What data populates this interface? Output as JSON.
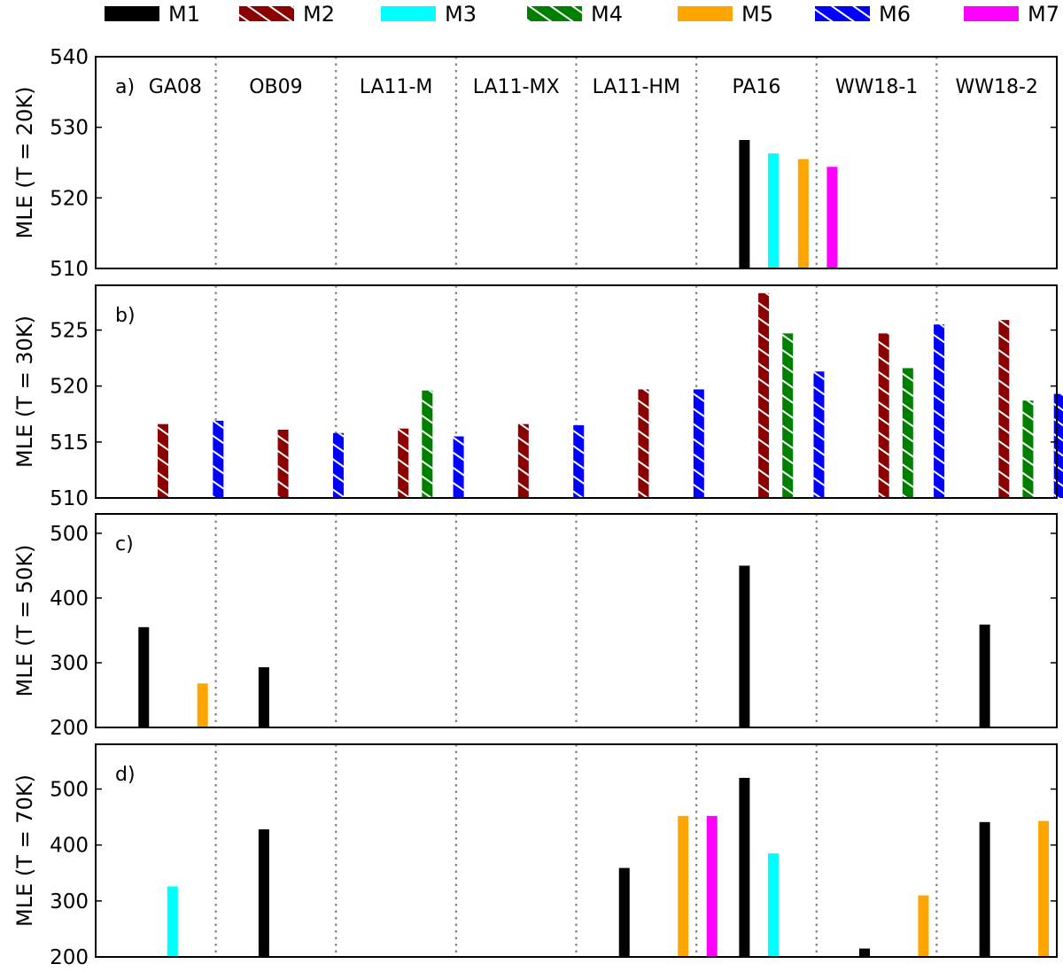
{
  "legend": [
    {
      "name": "M1",
      "color": "#000000",
      "hatch": false
    },
    {
      "name": "M2",
      "color": "#8b0000",
      "hatch": true
    },
    {
      "name": "M3",
      "color": "#00ffff",
      "hatch": false
    },
    {
      "name": "M4",
      "color": "#008000",
      "hatch": true
    },
    {
      "name": "M5",
      "color": "#ffa500",
      "hatch": false
    },
    {
      "name": "M6",
      "color": "#0000ff",
      "hatch": true
    },
    {
      "name": "M7",
      "color": "#ff00ff",
      "hatch": false
    }
  ],
  "chart_data": [
    {
      "type": "bar",
      "panel_label": "a)",
      "ylabel": "MLE (T = 20K)",
      "ylim": [
        510,
        540
      ],
      "yticks": [
        510,
        520,
        530,
        540
      ],
      "categories": [
        "GA08",
        "OB09",
        "LA11-M",
        "LA11-MX",
        "LA11-HM",
        "PA16",
        "WW18-1",
        "WW18-2"
      ],
      "series": [
        {
          "name": "M1",
          "values": [
            null,
            null,
            null,
            null,
            null,
            528.2,
            null,
            null
          ]
        },
        {
          "name": "M3",
          "values": [
            null,
            null,
            null,
            null,
            null,
            526.3,
            null,
            null
          ]
        },
        {
          "name": "M5",
          "values": [
            null,
            null,
            null,
            null,
            null,
            525.5,
            null,
            null
          ]
        },
        {
          "name": "M7",
          "values": [
            null,
            null,
            null,
            null,
            null,
            524.4,
            null,
            null
          ]
        }
      ]
    },
    {
      "type": "bar",
      "panel_label": "b)",
      "ylabel": "MLE (T = 30K)",
      "ylim": [
        510,
        529
      ],
      "yticks": [
        510,
        515,
        520,
        525
      ],
      "categories": [
        "GA08",
        "OB09",
        "LA11-M",
        "LA11-MX",
        "LA11-HM",
        "PA16",
        "WW18-1",
        "WW18-2"
      ],
      "series": [
        {
          "name": "M2",
          "values": [
            516.6,
            516.1,
            516.2,
            516.6,
            519.7,
            528.3,
            524.7,
            525.9
          ]
        },
        {
          "name": "M4",
          "values": [
            null,
            null,
            519.6,
            null,
            null,
            524.7,
            521.6,
            518.7
          ]
        },
        {
          "name": "M6",
          "values": [
            516.9,
            515.8,
            515.5,
            516.5,
            519.7,
            521.3,
            525.5,
            519.3
          ]
        }
      ]
    },
    {
      "type": "bar",
      "panel_label": "c)",
      "ylabel": "MLE (T = 50K)",
      "ylim": [
        200,
        530
      ],
      "yticks": [
        200,
        300,
        400,
        500
      ],
      "categories": [
        "GA08",
        "OB09",
        "LA11-M",
        "LA11-MX",
        "LA11-HM",
        "PA16",
        "WW18-1",
        "WW18-2"
      ],
      "series": [
        {
          "name": "M1",
          "values": [
            355,
            293,
            null,
            null,
            null,
            450,
            null,
            359
          ]
        },
        {
          "name": "M5",
          "values": [
            268,
            null,
            null,
            null,
            null,
            null,
            null,
            null
          ]
        }
      ]
    },
    {
      "type": "bar",
      "panel_label": "d)",
      "ylabel": "MLE (T = 70K)",
      "ylim": [
        200,
        580
      ],
      "yticks": [
        200,
        300,
        400,
        500
      ],
      "categories": [
        "GA08",
        "OB09",
        "LA11-M",
        "LA11-MX",
        "LA11-HM",
        "PA16",
        "WW18-1",
        "WW18-2"
      ],
      "series": [
        {
          "name": "M1",
          "values": [
            null,
            428,
            null,
            null,
            359,
            520,
            215,
            441
          ]
        },
        {
          "name": "M3",
          "values": [
            326,
            null,
            null,
            null,
            null,
            385,
            null,
            null
          ]
        },
        {
          "name": "M5",
          "values": [
            null,
            null,
            null,
            null,
            452,
            null,
            310,
            443
          ]
        },
        {
          "name": "M7",
          "values": [
            null,
            null,
            null,
            null,
            452,
            null,
            null,
            null
          ]
        }
      ]
    }
  ]
}
